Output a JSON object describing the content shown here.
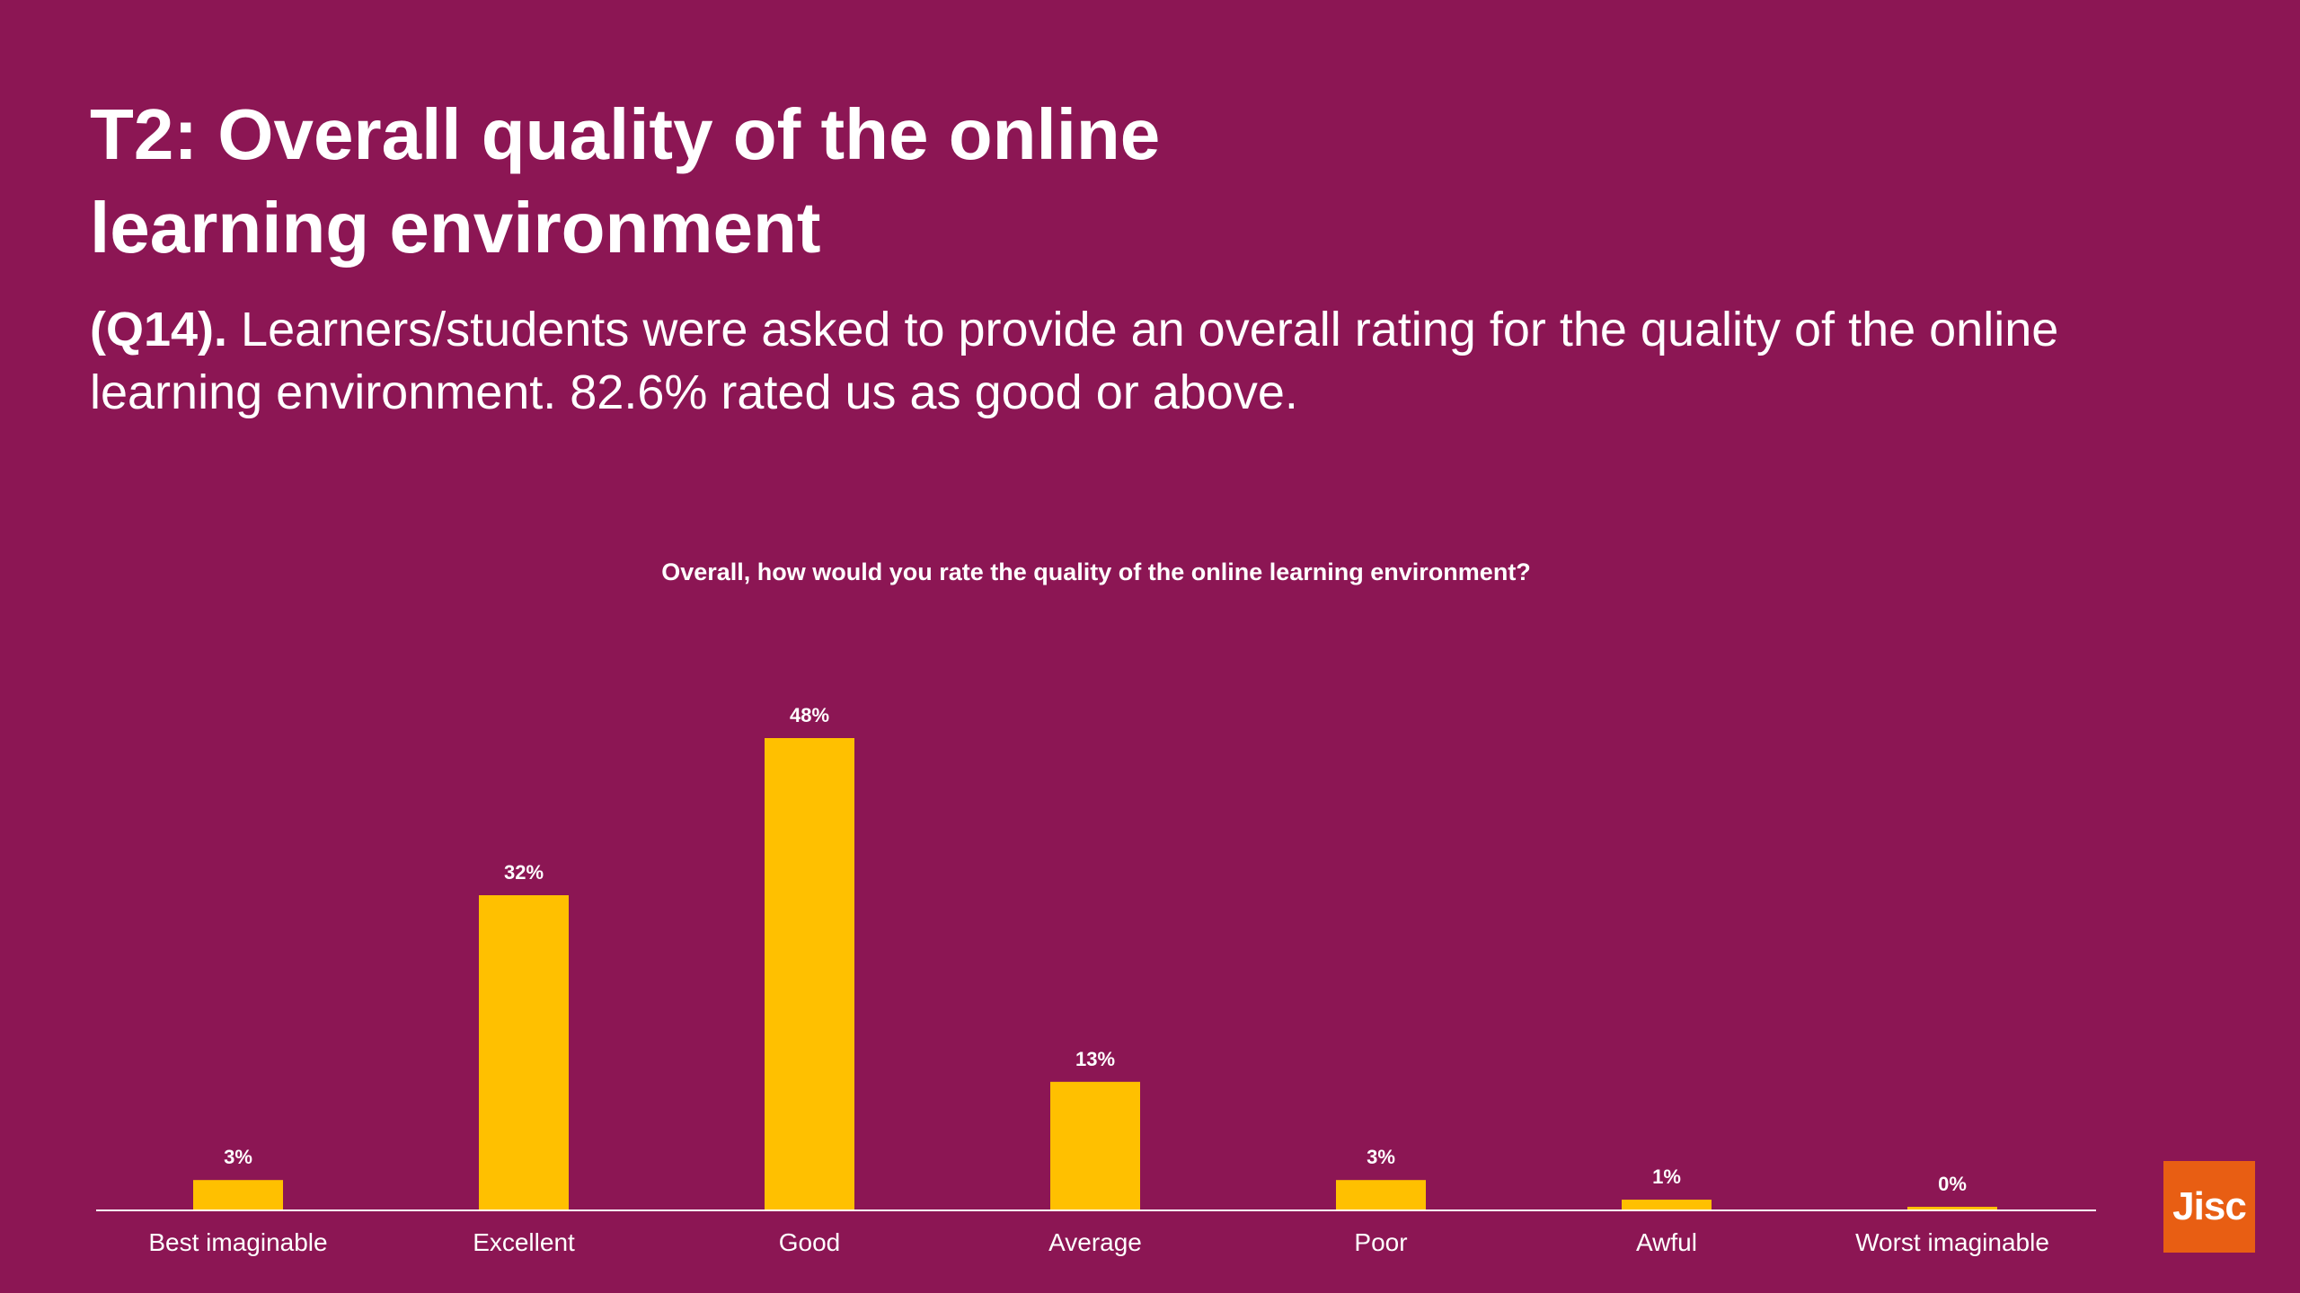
{
  "slide": {
    "title_line1": "T2: Overall quality of the online",
    "title_line2": "learning environment",
    "subtitle_lead": "(Q14).",
    "subtitle_text": " Learners/students were asked to provide an overall rating for the quality of the online learning environment. 82.6% rated us as good or above."
  },
  "logo": {
    "text": "Jisc",
    "color": "#E85E13"
  },
  "colors": {
    "background": "#8C1654",
    "bar": "#FFC000",
    "text": "#FFFFFF"
  },
  "chart_data": {
    "type": "bar",
    "title": "Overall, how would you rate the quality of the online learning environment?",
    "categories": [
      "Best imaginable",
      "Excellent",
      "Good",
      "Average",
      "Poor",
      "Awful",
      "Worst imaginable"
    ],
    "values": [
      3,
      32,
      48,
      13,
      3,
      1,
      0
    ],
    "value_labels": [
      "3%",
      "32%",
      "48%",
      "13%",
      "3%",
      "1%",
      "0%"
    ],
    "xlabel": "",
    "ylabel": "",
    "ylim": [
      0,
      48
    ],
    "grid": false,
    "legend": "none"
  }
}
